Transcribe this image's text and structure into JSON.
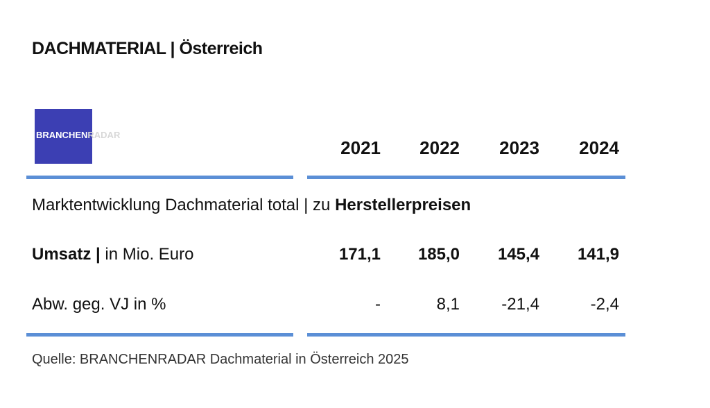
{
  "header": {
    "title": "DACHMATERIAL | Österreich"
  },
  "logo": {
    "part1": "BRANCHEN",
    "part2": "RADAR"
  },
  "table": {
    "columns": [
      "2021",
      "2022",
      "2023",
      "2024"
    ],
    "section": {
      "text": "Marktentwicklung Dachmaterial total | zu ",
      "bold": "Herstellerpreisen"
    },
    "rows": [
      {
        "label_bold": "Umsatz |",
        "label": " in Mio. Euro",
        "values": [
          "171,1",
          "185,0",
          "145,4",
          "141,9"
        ]
      },
      {
        "label": "Abw. geg. VJ in %",
        "values": [
          "-",
          "8,1",
          "-21,4",
          "-2,4"
        ]
      }
    ]
  },
  "footer": {
    "source": "Quelle: BRANCHENRADAR Dachmaterial in Österreich 2025"
  }
}
